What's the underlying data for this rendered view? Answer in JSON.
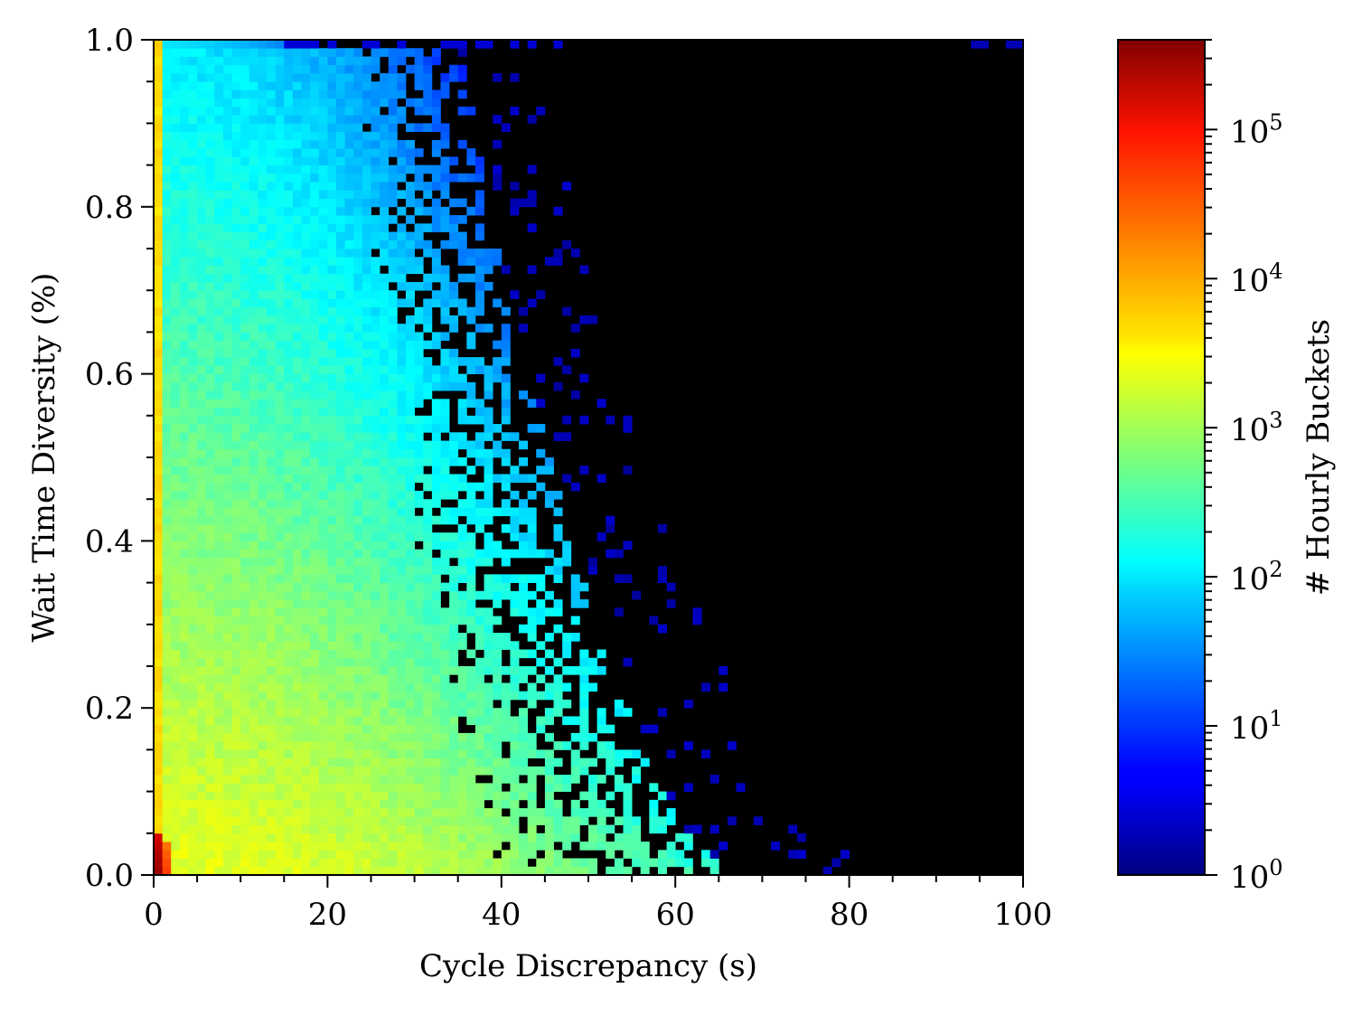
{
  "chart_data": {
    "type": "heatmap",
    "title": "",
    "xlabel": "Cycle Discrepancy (s)",
    "ylabel": "Wait Time Diversity (%)",
    "colorbar_label": "# Hourly Buckets",
    "colorscale": "jet",
    "colorscale_type": "log",
    "background_color": "#000000",
    "xlim": [
      0,
      100
    ],
    "ylim": [
      0.0,
      1.0
    ],
    "xticks": [
      0,
      20,
      40,
      60,
      80,
      100
    ],
    "xtick_labels": [
      "0",
      "20",
      "40",
      "60",
      "80",
      "100"
    ],
    "yticks": [
      0.0,
      0.2,
      0.4,
      0.6,
      0.8,
      1.0
    ],
    "ytick_labels": [
      "0.0",
      "0.2",
      "0.4",
      "0.6",
      "0.8",
      "1.0"
    ],
    "colorbar_ticks": [
      1,
      10,
      100,
      1000,
      10000,
      100000
    ],
    "colorbar_tick_labels": [
      {
        "base": "10",
        "exp": "0"
      },
      {
        "base": "10",
        "exp": "1"
      },
      {
        "base": "10",
        "exp": "2"
      },
      {
        "base": "10",
        "exp": "3"
      },
      {
        "base": "10",
        "exp": "4"
      },
      {
        "base": "10",
        "exp": "5"
      }
    ],
    "colorbar_range": [
      1,
      400000
    ],
    "bins": {
      "x": 100,
      "y": 100
    },
    "approx_density_features": {
      "peak_region": {
        "x": [
          0,
          2
        ],
        "y": [
          0.0,
          0.05
        ],
        "count": 300000
      },
      "left_edge_column": {
        "x": [
          0,
          1
        ],
        "y": [
          0.0,
          1.0
        ],
        "count": 4000
      },
      "high_density_band": {
        "x": [
          1,
          30
        ],
        "y": [
          0.0,
          0.15
        ],
        "count": 2500
      },
      "top_row_y_equals_1": {
        "x": [
          0,
          15
        ],
        "count": 100
      },
      "outer_boundary": {
        "x_at_y_0": 68,
        "x_at_y_1": 35
      }
    }
  }
}
